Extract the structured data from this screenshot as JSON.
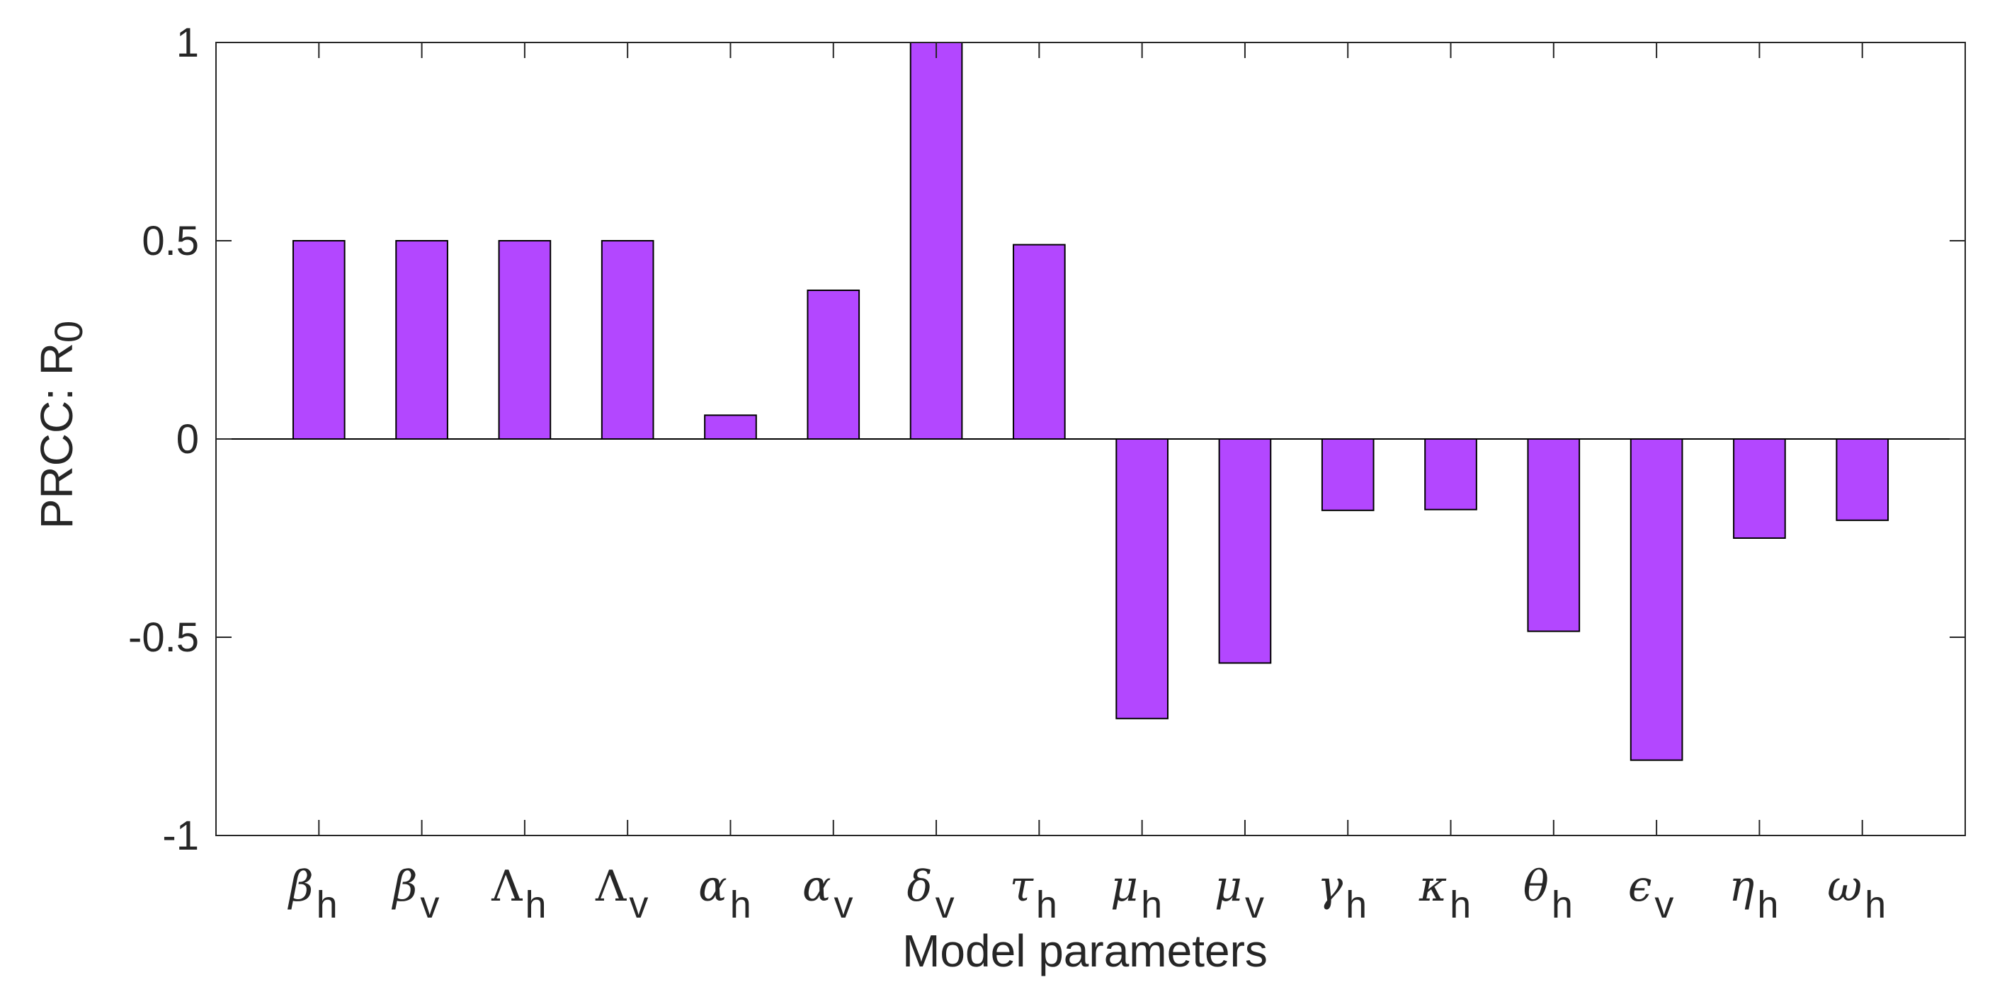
{
  "chart_data": {
    "type": "bar",
    "title": "",
    "xlabel": "Model parameters",
    "ylabel": {
      "main": "PRCC: R",
      "sub": "0"
    },
    "ylim": [
      -1,
      1
    ],
    "yticks": [
      {
        "value": -1,
        "label": "-1"
      },
      {
        "value": -0.5,
        "label": "-0.5"
      },
      {
        "value": 0,
        "label": "0"
      },
      {
        "value": 0.5,
        "label": "0.5"
      },
      {
        "value": 1,
        "label": "1"
      }
    ],
    "grid": false,
    "bar_color": "#B347FF",
    "categories": [
      {
        "symbol": "β",
        "sub": "h",
        "italic": true
      },
      {
        "symbol": "β",
        "sub": "v",
        "italic": true
      },
      {
        "symbol": "Λ",
        "sub": "h",
        "italic": false
      },
      {
        "symbol": "Λ",
        "sub": "v",
        "italic": false
      },
      {
        "symbol": "α",
        "sub": "h",
        "italic": true
      },
      {
        "symbol": "α",
        "sub": "v",
        "italic": true
      },
      {
        "symbol": "δ",
        "sub": "v",
        "italic": true
      },
      {
        "symbol": "τ",
        "sub": "h",
        "italic": true
      },
      {
        "symbol": "μ",
        "sub": "h",
        "italic": true
      },
      {
        "symbol": "μ",
        "sub": "v",
        "italic": true
      },
      {
        "symbol": "γ",
        "sub": "h",
        "italic": true
      },
      {
        "symbol": "κ",
        "sub": "h",
        "italic": true
      },
      {
        "symbol": "θ",
        "sub": "h",
        "italic": true
      },
      {
        "symbol": "ϵ",
        "sub": "v",
        "italic": true
      },
      {
        "symbol": "η",
        "sub": "h",
        "italic": true
      },
      {
        "symbol": "ω",
        "sub": "h",
        "italic": true
      }
    ],
    "values": [
      0.5,
      0.5,
      0.5,
      0.5,
      0.06,
      0.375,
      1.0,
      0.49,
      -0.705,
      -0.565,
      -0.18,
      -0.178,
      -0.485,
      -0.81,
      -0.25,
      -0.205
    ]
  }
}
